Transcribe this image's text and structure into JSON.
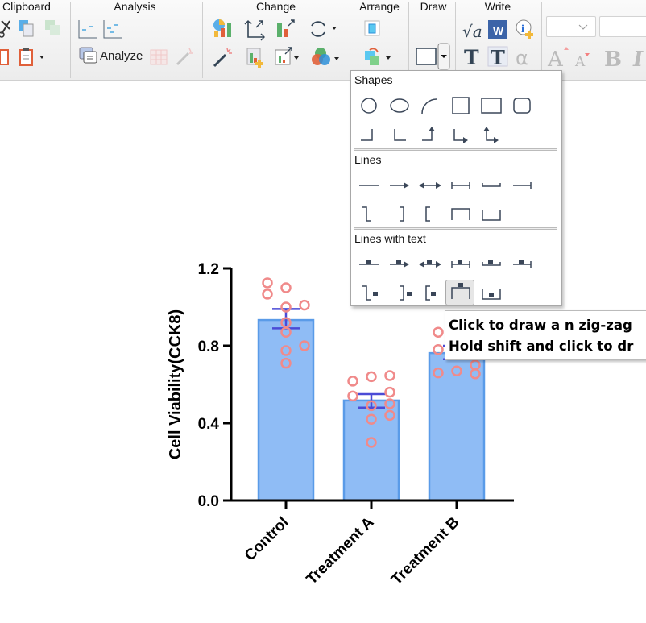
{
  "ribbon": {
    "groups": [
      {
        "label": "Clipboard"
      },
      {
        "label": "Analysis"
      },
      {
        "label": "Change"
      },
      {
        "label": "Arrange"
      },
      {
        "label": "Draw"
      },
      {
        "label": "Write"
      }
    ],
    "analyze_label": "Analyze",
    "icons": [
      "cut-icon",
      "copy-icon",
      "paste-special-icon",
      "paste-icon",
      "paste-dropdown-icon",
      "analysis-line-icon",
      "analysis-line2-icon",
      "analyze-icon",
      "table-icon",
      "wand-icon",
      "chart-type-icon",
      "axes-icon",
      "bar-change-icon",
      "cycle-icon",
      "magic-wand-icon",
      "add-chart-icon",
      "resize-chart-icon",
      "color-scheme-icon",
      "bring-front-icon",
      "arrange-icon",
      "rectangle-draw-icon",
      "sqrt-icon",
      "word-icon",
      "info-add-icon",
      "text-T-icon",
      "text-T-box-icon",
      "alpha-icon",
      "font-grow-icon",
      "font-shrink-icon",
      "bold-icon",
      "italic-icon"
    ]
  },
  "menu": {
    "sections": [
      {
        "title": "Shapes",
        "rows": [
          [
            "circle",
            "ellipse",
            "arc",
            "square",
            "rectangle",
            "rounded-rectangle"
          ],
          [
            "corner-right",
            "corner-left",
            "elbow-up-arrow",
            "elbow-right-arrow",
            "elbow-double-arrow"
          ]
        ]
      },
      {
        "title": "Lines",
        "rows": [
          [
            "line",
            "arrow",
            "double-arrow",
            "bracket-line",
            "cup-line",
            "end-bar-line"
          ],
          [
            "step-down",
            "bracket-right",
            "bracket-left",
            "bracket-top",
            "bracket-bottom"
          ]
        ]
      },
      {
        "title": "Lines with text",
        "rows": [
          [
            "text-line",
            "text-arrow",
            "text-double-arrow",
            "text-bracket-line",
            "text-cup-line",
            "text-end-bar-line"
          ],
          [
            "text-step-down",
            "text-bracket-right",
            "text-bracket-left",
            "text-bracket-top",
            "text-bracket-bottom"
          ]
        ]
      }
    ],
    "selected": "text-bracket-top"
  },
  "tooltip": {
    "line1": "Click to draw a n zig-zag",
    "line2": "Hold shift and click to dr"
  },
  "chart_data": {
    "type": "bar",
    "ylabel": "Cell Viability(CCK8)",
    "xlabel": "",
    "ylim": [
      0,
      1.2
    ],
    "yticks": [
      "0.0",
      "0.4",
      "0.8",
      "1.2"
    ],
    "categories": [
      "Control",
      "Treatment A",
      "Treatment B"
    ],
    "values": [
      0.933,
      0.517,
      0.762
    ],
    "error": [
      [
        0.89,
        0.99
      ],
      [
        0.48,
        0.55
      ],
      [
        0.73,
        0.8
      ]
    ],
    "points": [
      [
        1.125,
        1.067,
        1.1,
        1.0,
        0.92,
        0.87,
        0.775,
        0.71,
        1.01,
        0.8
      ],
      [
        0.617,
        0.54,
        0.64,
        0.49,
        0.42,
        0.3,
        0.646,
        0.56,
        0.5,
        0.44
      ],
      [
        0.87,
        0.78,
        0.66,
        0.67,
        0.7,
        0.655
      ]
    ],
    "colors": {
      "bar_fill": "#8fbcf5",
      "bar_edge": "#5a9be8",
      "points": "#f08a8a",
      "error": "#4b4bd6"
    }
  }
}
